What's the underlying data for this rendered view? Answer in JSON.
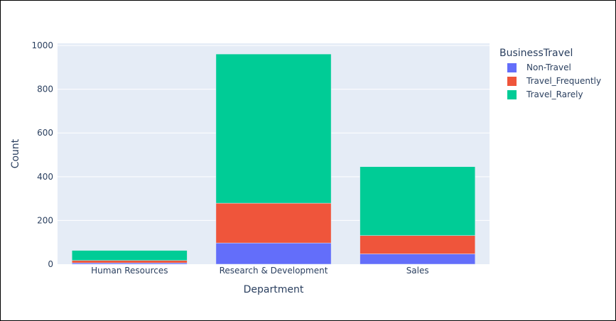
{
  "chart_data": {
    "type": "bar",
    "barmode": "stack",
    "categories": [
      "Human Resources",
      "Research & Development",
      "Sales"
    ],
    "series": [
      {
        "name": "Non-Travel",
        "values": [
          6,
          97,
          47
        ],
        "color": "#636efa"
      },
      {
        "name": "Travel_Frequently",
        "values": [
          11,
          182,
          84
        ],
        "color": "#ef553b"
      },
      {
        "name": "Travel_Rarely",
        "values": [
          46,
          682,
          315
        ],
        "color": "#00cc96"
      }
    ],
    "xlabel": "Department",
    "ylabel": "Count",
    "ylim": [
      0,
      1010
    ],
    "yticks": [
      0,
      200,
      400,
      600,
      800,
      1000
    ],
    "grid": true,
    "legend": {
      "title": "BusinessTravel",
      "placement": "top-right"
    },
    "plot_background": "#e5ecf6"
  }
}
